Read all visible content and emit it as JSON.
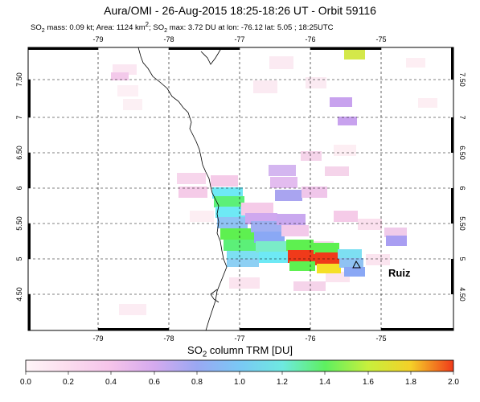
{
  "header": {
    "title": "Aura/OMI - 26-Aug-2015 18:25-18:26 UT - Orbit 59116",
    "subtitle_prefix": "SO",
    "subtitle_sub": "2",
    "subtitle_mass": " mass: 0.09 kt; Area: 1124 km",
    "subtitle_sup": "2",
    "subtitle_rest_a": "; SO",
    "subtitle_sub2": "2",
    "subtitle_rest_b": " max: 3.72 DU at lon: -76.12 lat: 5.05 ; 18:25UTC"
  },
  "map": {
    "lon_ticks": [
      "-79",
      "-78",
      "-77",
      "-76",
      "-75"
    ],
    "lat_ticks": [
      "7.50",
      "7",
      "6.50",
      "6",
      "5.50",
      "5",
      "4.50"
    ],
    "volcano_name": "Ruiz",
    "volcano_marker": "triangle"
  },
  "colorbar": {
    "label_main": "SO",
    "label_sub": "2",
    "label_rest": " column TRM [DU]",
    "ticks": [
      "0.0",
      "0.2",
      "0.4",
      "0.6",
      "0.8",
      "1.0",
      "1.2",
      "1.4",
      "1.6",
      "1.8",
      "2.0"
    ],
    "colors": [
      "#fff5f8",
      "#f8cce6",
      "#e8aaee",
      "#b9a8f0",
      "#8aa8f5",
      "#6ee9f5",
      "#5cf09a",
      "#5ef050",
      "#c7f03c",
      "#f5e028",
      "#f03a1a"
    ]
  }
}
